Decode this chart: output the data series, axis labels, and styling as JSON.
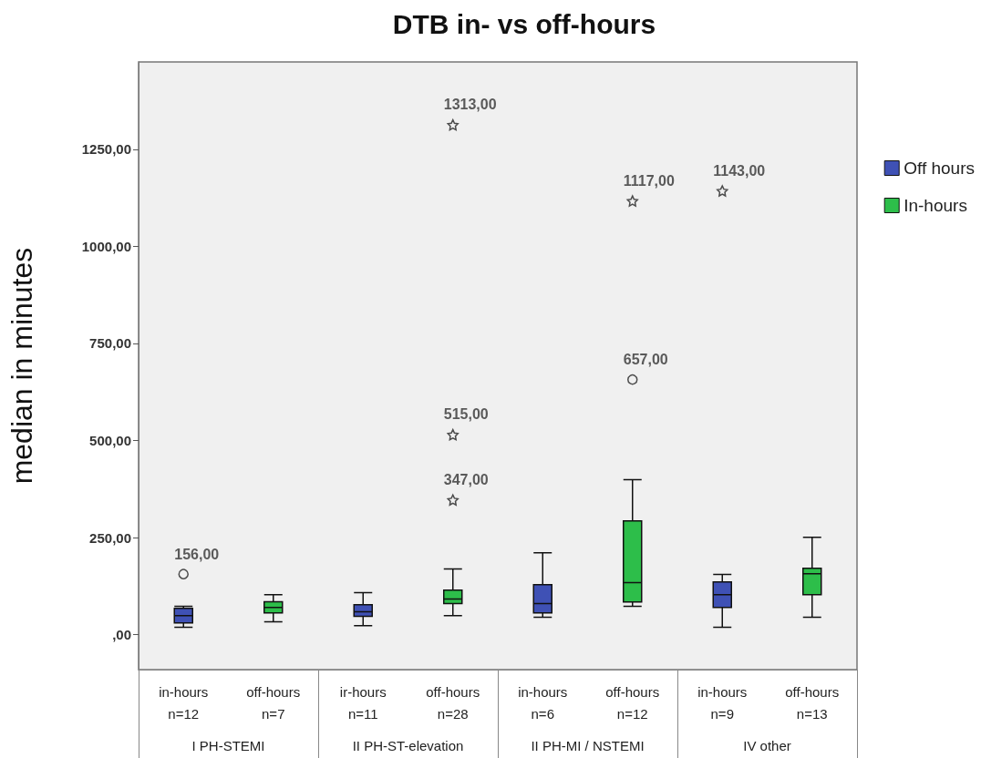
{
  "chart_data": {
    "type": "box",
    "title": "DTB in- vs off-hours",
    "ylabel": "median in minutes",
    "categories": [
      "in-hours\nn=12",
      "off-hours\nn=7",
      "ir-hours\nn=11",
      "off-hours\nn=28",
      "in-hours\nn=6",
      "off-hours\nn=12",
      "in-hours\nn=9",
      "off-hours\nn=13"
    ],
    "series": [
      {
        "name": "Off hours",
        "color": "#3f51b5",
        "boxes": [
          {
            "low": 19,
            "q1": 30,
            "median": 49,
            "q3": 68,
            "high": 73,
            "outliers": [
              156
            ]
          },
          null,
          {
            "low": 23,
            "q1": 47,
            "median": 59,
            "q3": 77,
            "high": 108
          },
          null,
          {
            "low": 45,
            "q1": 56,
            "median": 80,
            "q3": 129,
            "high": 211
          },
          null,
          {
            "low": 19,
            "q1": 70,
            "median": 103,
            "q3": 136,
            "high": 155,
            "outliers": [
              1143
            ]
          },
          null
        ]
      },
      {
        "name": "In-hours",
        "color": "#2dbe4a",
        "boxes": [
          null,
          {
            "low": 33,
            "q1": 56,
            "median": 70,
            "q3": 85,
            "high": 103
          },
          null,
          {
            "low": 49,
            "q1": 80,
            "median": 92,
            "q3": 115,
            "high": 169,
            "outliers": [
              347,
              515,
              1313
            ]
          },
          null,
          {
            "low": 73,
            "q1": 84,
            "median": 134,
            "q3": 293,
            "high": 399,
            "outliers": [
              657,
              1117
            ]
          },
          null,
          {
            "low": 45,
            "q1": 103,
            "median": 157,
            "q3": 171,
            "high": 251
          }
        ]
      }
    ],
    "ylim": [
      -90,
      1475
    ],
    "yticks": [
      {
        "value": 0,
        "label": ",00"
      },
      {
        "value": 250,
        "label": "250,00"
      },
      {
        "value": 500,
        "label": "500,00"
      },
      {
        "value": 750,
        "label": "750,00"
      },
      {
        "value": 1000,
        "label": "1000,00"
      },
      {
        "value": 1250,
        "label": "1250,00"
      }
    ],
    "grid": false,
    "legend": "top right",
    "annotations": [
      "I PH-STEMI",
      "II PH-ST-elevation",
      "II PH-MI / NSTEMI",
      "IV other",
      "156,00",
      "1143,00",
      "347,00",
      "515,00",
      "1313,00",
      "657,00",
      "1117,00"
    ]
  }
}
